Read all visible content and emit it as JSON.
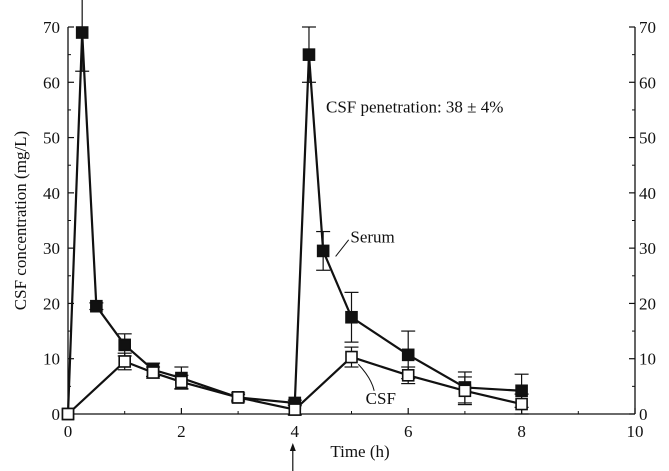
{
  "chart_data": {
    "type": "line",
    "xlabel": "Time (h)",
    "ylabel": "CSF concentration (mg/L)",
    "xlim": [
      0,
      10
    ],
    "ylim": [
      0,
      70
    ],
    "x_ticks": [
      0,
      2,
      4,
      6,
      8,
      10
    ],
    "y_ticks": [
      0,
      10,
      20,
      30,
      40,
      50,
      60,
      70
    ],
    "right_axis_ticks": [
      0,
      10,
      20,
      30,
      40,
      50,
      60,
      70
    ],
    "grid": false,
    "series": [
      {
        "name": "Serum",
        "marker": "filled-square",
        "color": "#111111",
        "points": [
          {
            "x": 0,
            "y": 0
          },
          {
            "x": 0.25,
            "y": 69,
            "err": 7
          },
          {
            "x": 0.5,
            "y": 19.5,
            "err": 0.6
          },
          {
            "x": 1,
            "y": 12.5,
            "err": 2
          },
          {
            "x": 1.5,
            "y": 8,
            "err": 1.2
          },
          {
            "x": 2,
            "y": 6.5,
            "err": 2
          },
          {
            "x": 3,
            "y": 3,
            "err": 0.8
          },
          {
            "x": 4,
            "y": 2,
            "err": 0.5
          },
          {
            "x": 4.25,
            "y": 65,
            "err": 5
          },
          {
            "x": 4.5,
            "y": 29.5,
            "err": 3.5
          },
          {
            "x": 5,
            "y": 17.5,
            "err": 4.5
          },
          {
            "x": 6,
            "y": 10.7,
            "err": 4.3
          },
          {
            "x": 7,
            "y": 4.8,
            "err": 2.8
          },
          {
            "x": 8,
            "y": 4.2,
            "err": 3
          }
        ]
      },
      {
        "name": "CSF",
        "marker": "open-square",
        "color": "#111111",
        "points": [
          {
            "x": 0,
            "y": 0
          },
          {
            "x": 1,
            "y": 9.5,
            "err": 1.5
          },
          {
            "x": 1.5,
            "y": 7.5,
            "err": 1
          },
          {
            "x": 2,
            "y": 5.8,
            "err": 1.2
          },
          {
            "x": 3,
            "y": 3,
            "err": 0.5
          },
          {
            "x": 4,
            "y": 0.8,
            "err": 1
          },
          {
            "x": 5,
            "y": 10.3,
            "err": 1.8
          },
          {
            "x": 6,
            "y": 7,
            "err": 1.5
          },
          {
            "x": 7,
            "y": 4.2,
            "err": 2.5
          },
          {
            "x": 8,
            "y": 1.8,
            "err": 1.8
          }
        ]
      }
    ],
    "annotations": {
      "penetration": "CSF penetration: 38 ± 4%",
      "serum_label": "Serum",
      "csf_label": "CSF",
      "dose_arrow_x": 4
    }
  }
}
